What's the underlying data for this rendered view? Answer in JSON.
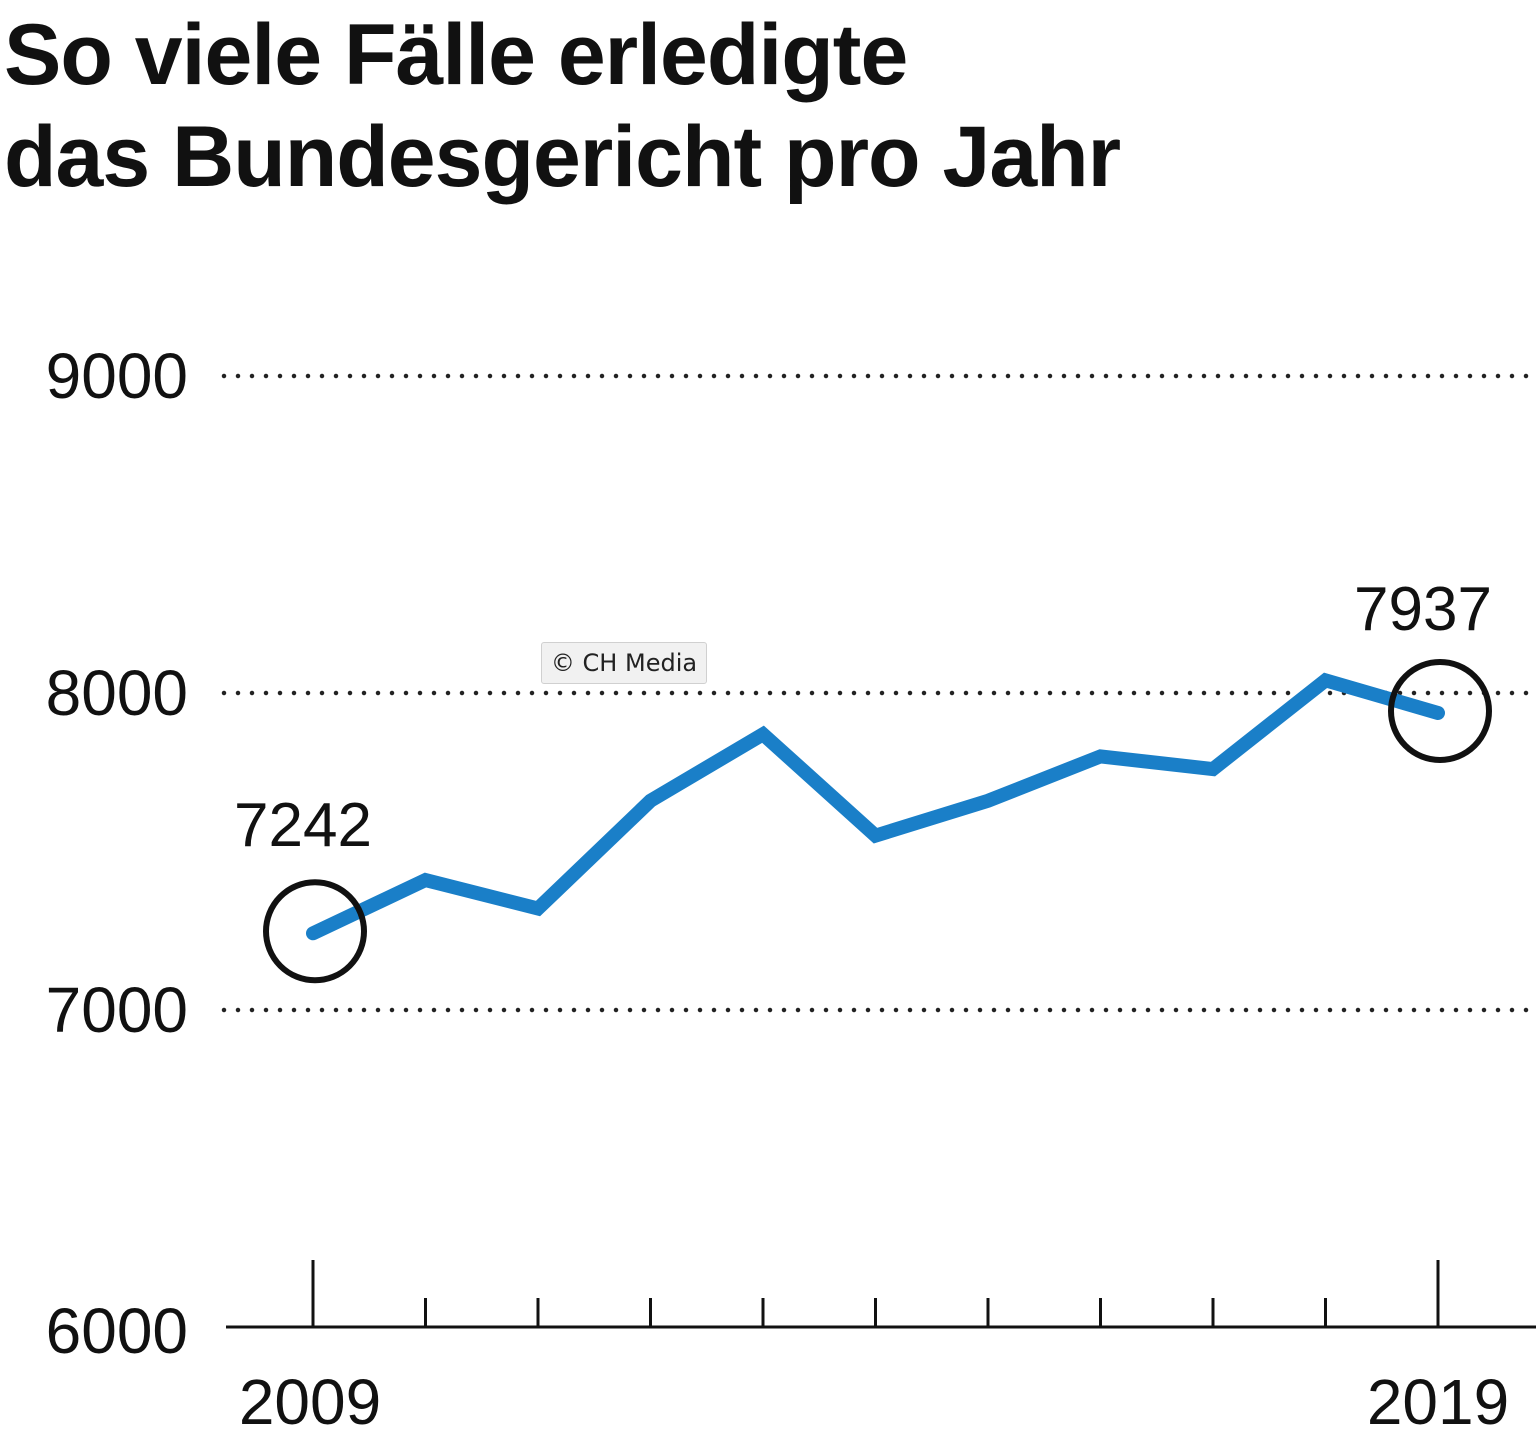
{
  "chart_data": {
    "type": "line",
    "title_lines": [
      "So viele Fälle erledigte",
      "das Bundesgericht pro Jahr"
    ],
    "x": [
      2009,
      2010,
      2011,
      2012,
      2013,
      2014,
      2015,
      2016,
      2017,
      2018,
      2019
    ],
    "series": [
      {
        "name": "Erledigte Fälle",
        "color": "#1a7fc8",
        "values": [
          7242,
          7410,
          7320,
          7660,
          7870,
          7550,
          7660,
          7800,
          7760,
          8040,
          7937
        ]
      }
    ],
    "ylim": [
      6000,
      9000
    ],
    "yticks": [
      "6000",
      "7000",
      "8000",
      "9000"
    ],
    "xtick_labels": [
      "2009",
      "2019"
    ],
    "annotations": [
      {
        "year": 2009,
        "label": "7242"
      },
      {
        "year": 2019,
        "label": "7937"
      }
    ],
    "grid": "dotted horizontal",
    "xlabel": "",
    "ylabel": ""
  },
  "credit": "© CH Media"
}
